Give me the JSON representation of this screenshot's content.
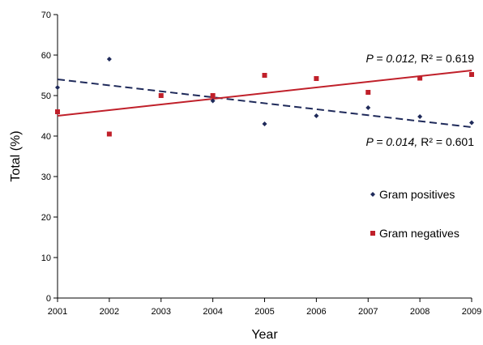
{
  "chart_data": {
    "type": "scatter",
    "title": "",
    "xlabel": "Year",
    "ylabel": "Total (%)",
    "xlim": [
      2001,
      2009
    ],
    "ylim": [
      0,
      70
    ],
    "x_ticks": [
      "2001",
      "2002",
      "2003",
      "2004",
      "2005",
      "2006",
      "2007",
      "2008",
      "2009"
    ],
    "y_ticks": [
      "0",
      "10",
      "20",
      "30",
      "40",
      "50",
      "60",
      "70"
    ],
    "grid": false,
    "legend_position": "right",
    "series": [
      {
        "name": "Gram positives",
        "marker": "diamond",
        "color": "#1f2a5a",
        "x": [
          2001,
          2002,
          2003,
          2004,
          2005,
          2006,
          2007,
          2008,
          2009
        ],
        "y": [
          52,
          59,
          50,
          48.7,
          43,
          45,
          47,
          44.8,
          43.3
        ],
        "trend": {
          "style": "dashed",
          "y_start": 54,
          "y_end": 42.2,
          "annotation": {
            "p_label": "P = 0.014,",
            "r_label": "R² = 0.601"
          }
        }
      },
      {
        "name": "Gram negatives",
        "marker": "square",
        "color": "#c0202a",
        "x": [
          2001,
          2002,
          2003,
          2004,
          2005,
          2006,
          2007,
          2008,
          2009
        ],
        "y": [
          46,
          40.5,
          50,
          50,
          55,
          54.2,
          50.8,
          54.3,
          55.2
        ],
        "trend": {
          "style": "solid",
          "y_start": 45,
          "y_end": 56.2,
          "annotation": {
            "p_label": "P = 0.012,",
            "r_label": "R² = 0.619"
          }
        }
      }
    ]
  }
}
